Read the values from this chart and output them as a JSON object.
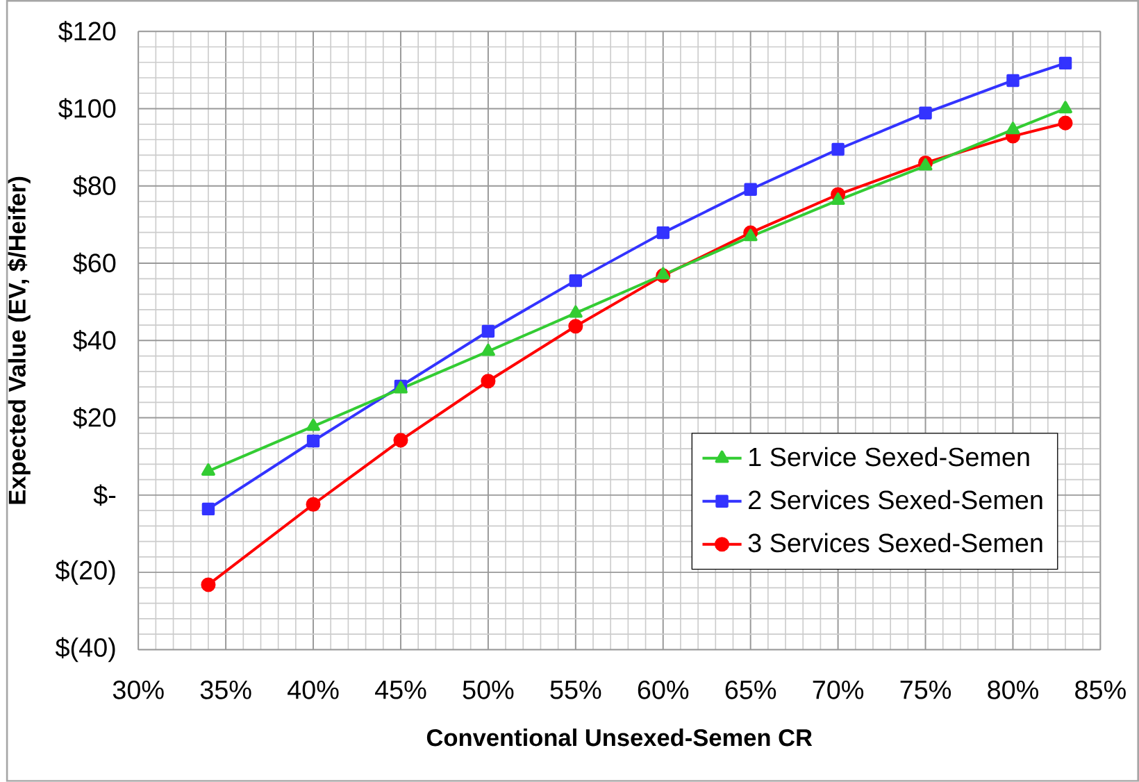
{
  "chart_data": {
    "type": "line",
    "xlabel": "Conventional Unsexed-Semen CR",
    "ylabel": "Expected Value  (EV, $/Heifer)",
    "x": [
      34,
      40,
      45,
      50,
      55,
      60,
      65,
      70,
      75,
      80,
      83
    ],
    "series": [
      {
        "name": "1 Service Sexed-Semen",
        "color": "#33cc33",
        "marker": "triangle",
        "values": [
          6.2,
          17.8,
          27.5,
          37.2,
          47.1,
          57,
          66.9,
          76.3,
          85.2,
          94.6,
          100
        ]
      },
      {
        "name": "2 Services Sexed-Semen",
        "color": "#3333ff",
        "marker": "square",
        "values": [
          -3.6,
          14,
          28.2,
          42.4,
          55.5,
          67.9,
          79.1,
          89.5,
          98.9,
          107.3,
          111.8
        ]
      },
      {
        "name": "3 Services Sexed-Semen",
        "color": "#ff0000",
        "marker": "circle",
        "values": [
          -23.2,
          -2.4,
          14.2,
          29.5,
          43.7,
          56.8,
          67.9,
          77.8,
          86,
          92.9,
          96.3
        ]
      }
    ],
    "xlim": [
      30,
      85
    ],
    "xticks": [
      {
        "value": 30,
        "label": "30%"
      },
      {
        "value": 35,
        "label": "35%"
      },
      {
        "value": 40,
        "label": "40%"
      },
      {
        "value": 45,
        "label": "45%"
      },
      {
        "value": 50,
        "label": "50%"
      },
      {
        "value": 55,
        "label": "55%"
      },
      {
        "value": 60,
        "label": "60%"
      },
      {
        "value": 65,
        "label": "65%"
      },
      {
        "value": 70,
        "label": "70%"
      },
      {
        "value": 75,
        "label": "75%"
      },
      {
        "value": 80,
        "label": "80%"
      },
      {
        "value": 85,
        "label": "85%"
      }
    ],
    "ylim": [
      -40,
      120
    ],
    "yticks": [
      {
        "value": -40,
        "label": "$(40)"
      },
      {
        "value": -20,
        "label": "$(20)"
      },
      {
        "value": 0,
        "label": "$-"
      },
      {
        "value": 20,
        "label": "$20"
      },
      {
        "value": 40,
        "label": "$40"
      },
      {
        "value": 60,
        "label": "$60"
      },
      {
        "value": 80,
        "label": "$80"
      },
      {
        "value": 100,
        "label": "$100"
      },
      {
        "value": 120,
        "label": "$120"
      }
    ],
    "grid": true,
    "legend": "right",
    "line_style": "solid"
  }
}
